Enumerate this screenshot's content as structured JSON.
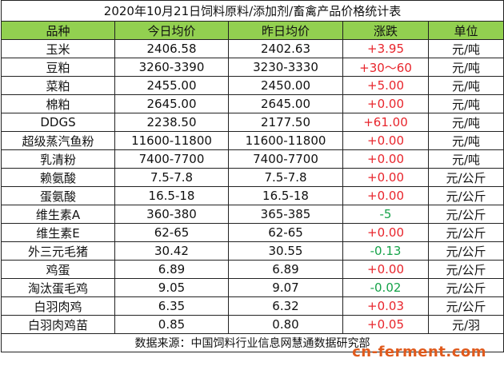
{
  "header": {
    "title": "2020年10月21日饲料原料/添加剂/畜禽产品价格统计表"
  },
  "table": {
    "columns": [
      "品种",
      "今日均价",
      "昨日均价",
      "涨跌",
      "单位"
    ],
    "rows": [
      [
        "玉米",
        "2406.58",
        "2402.63",
        "+3.95",
        "元/吨"
      ],
      [
        "豆粕",
        "3260-3390",
        "3230-3330",
        "+30～60",
        "元/吨"
      ],
      [
        "菜粕",
        "2455.00",
        "2450.00",
        "+5.00",
        "元/吨"
      ],
      [
        "棉粕",
        "2645.00",
        "2645.00",
        "+0.00",
        "元/吨"
      ],
      [
        "DDGS",
        "2238.50",
        "2177.50",
        "+61.00",
        "元/吨"
      ],
      [
        "超级蒸汽鱼粉",
        "11600-11800",
        "11600-11800",
        "+0.00",
        "元/吨"
      ],
      [
        "乳清粉",
        "7400-7700",
        "7400-7700",
        "+0.00",
        "元/吨"
      ],
      [
        "赖氨酸",
        "7.5-7.8",
        "7.5-7.8",
        "+0.00",
        "元/公斤"
      ],
      [
        "蛋氨酸",
        "16.5-18",
        "16.5-18",
        "+0.00",
        "元/公斤"
      ],
      [
        "维生素A",
        "360-380",
        "365-385",
        "-5",
        "元/公斤"
      ],
      [
        "维生素E",
        "62-65",
        "62-65",
        "+0.00",
        "元/公斤"
      ],
      [
        "外三元毛猪",
        "30.42",
        "30.55",
        "-0.13",
        "元/公斤"
      ],
      [
        "鸡蛋",
        "6.89",
        "6.89",
        "+0.00",
        "元/公斤"
      ],
      [
        "淘汰蛋毛鸡",
        "9.05",
        "9.07",
        "-0.02",
        "元/公斤"
      ],
      [
        "白羽肉鸡",
        "6.35",
        "6.32",
        "+0.03",
        "元/公斤"
      ],
      [
        "白羽肉鸡苗",
        "0.85",
        "0.80",
        "+0.05",
        "元/羽"
      ]
    ]
  },
  "footer": {
    "source": "数据来源：中国饲料行业信息网慧通数据研究部",
    "watermark": "cn-ferment.com"
  }
}
